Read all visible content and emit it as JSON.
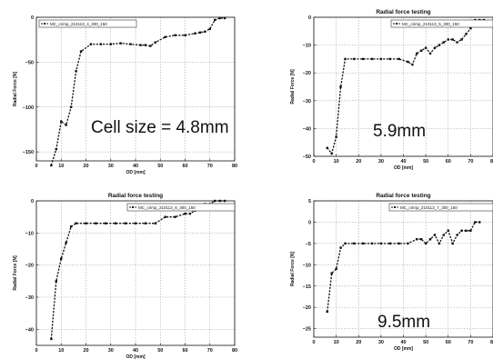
{
  "chart_data": [
    {
      "type": "line",
      "title": "",
      "xlabel": "OD [mm]",
      "ylabel": "Radial Force [N]",
      "annotation": "Cell size = 4.8mm",
      "xlim": [
        0,
        80
      ],
      "ylim": [
        -160,
        0
      ],
      "xticks": [
        0,
        10,
        20,
        30,
        40,
        50,
        60,
        70,
        80
      ],
      "yticks": [
        0,
        -50,
        -100,
        -150
      ],
      "grid": true,
      "legend": "top-left",
      "series": [
        {
          "name": "MC_crimp_210113_4_300_150",
          "x": [
            6,
            8,
            10,
            12,
            14,
            16,
            18,
            22,
            26,
            30,
            34,
            38,
            42,
            44,
            46,
            48,
            52,
            56,
            60,
            64,
            66,
            68,
            70,
            72,
            74,
            76
          ],
          "y": [
            -165,
            -147,
            -116,
            -120,
            -100,
            -60,
            -38,
            -30,
            -30,
            -30,
            -29,
            -30,
            -31,
            -31,
            -32,
            -28,
            -22,
            -20,
            -20,
            -18,
            -17,
            -16,
            -13,
            -3,
            -1,
            -1
          ]
        }
      ]
    },
    {
      "type": "line",
      "title": "Radial force testing",
      "xlabel": "OD [mm]",
      "ylabel": "Radial Force [N]",
      "annotation": "5.9mm",
      "xlim": [
        0,
        80
      ],
      "ylim": [
        -50,
        0
      ],
      "xticks": [
        0,
        10,
        20,
        30,
        40,
        50,
        60,
        70,
        80
      ],
      "yticks": [
        0,
        -10,
        -20,
        -30,
        -40,
        -50
      ],
      "grid": true,
      "legend": "top-right",
      "series": [
        {
          "name": "MC_crimp_210113_5_300_150",
          "x": [
            6,
            8,
            10,
            12,
            14,
            18,
            22,
            26,
            30,
            34,
            38,
            42,
            44,
            46,
            48,
            50,
            52,
            54,
            56,
            58,
            60,
            62,
            64,
            66,
            68,
            70,
            72,
            74,
            76
          ],
          "y": [
            -47,
            -49,
            -43,
            -25,
            -15,
            -15,
            -15,
            -15,
            -15,
            -15,
            -15,
            -16,
            -17,
            -13,
            -12,
            -11,
            -13,
            -11,
            -10,
            -9,
            -8,
            -8,
            -9,
            -8,
            -6,
            -4,
            -1,
            -1,
            -1
          ]
        }
      ]
    },
    {
      "type": "line",
      "title": "Radial force testing",
      "xlabel": "OD [mm]",
      "ylabel": "Radial Force [N]",
      "annotation": "",
      "xlim": [
        0,
        80
      ],
      "ylim": [
        -45,
        0
      ],
      "xticks": [
        0,
        10,
        20,
        30,
        40,
        50,
        60,
        70,
        80
      ],
      "yticks": [
        0,
        -10,
        -20,
        -30,
        -40
      ],
      "grid": true,
      "legend": "top-right",
      "series": [
        {
          "name": "MC_crimp_210113_6_300_150",
          "x": [
            6,
            8,
            10,
            12,
            14,
            16,
            20,
            24,
            28,
            32,
            36,
            40,
            44,
            48,
            52,
            56,
            60,
            62,
            64,
            66,
            68,
            70,
            72,
            74,
            76
          ],
          "y": [
            -43,
            -25,
            -18,
            -13,
            -8,
            -7,
            -7,
            -7,
            -7,
            -7,
            -7,
            -7,
            -7,
            -7,
            -5,
            -5,
            -4,
            -4,
            -3,
            -2,
            -1,
            -1,
            0,
            0,
            0
          ]
        }
      ]
    },
    {
      "type": "line",
      "title": "Radial force testing",
      "xlabel": "OD [mm]",
      "ylabel": "Radial Force [N]",
      "annotation": "9.5mm",
      "xlim": [
        0,
        80
      ],
      "ylim": [
        -27,
        5
      ],
      "xticks": [
        0,
        10,
        20,
        30,
        40,
        50,
        60,
        70,
        80
      ],
      "yticks": [
        5,
        0,
        -5,
        -10,
        -15,
        -20,
        -25
      ],
      "grid": true,
      "legend": "top-right",
      "series": [
        {
          "name": "MC_crimp_210113_7_300_150",
          "x": [
            6,
            8,
            10,
            12,
            14,
            18,
            22,
            26,
            30,
            34,
            38,
            42,
            46,
            48,
            50,
            52,
            54,
            56,
            58,
            60,
            62,
            64,
            66,
            68,
            70,
            72,
            74
          ],
          "y": [
            -21,
            -12,
            -11,
            -6,
            -5,
            -5,
            -5,
            -5,
            -5,
            -5,
            -5,
            -5,
            -4,
            -4,
            -5,
            -4,
            -3,
            -5,
            -3,
            -2,
            -5,
            -3,
            -2,
            -2,
            -2,
            0,
            0
          ]
        }
      ]
    }
  ]
}
